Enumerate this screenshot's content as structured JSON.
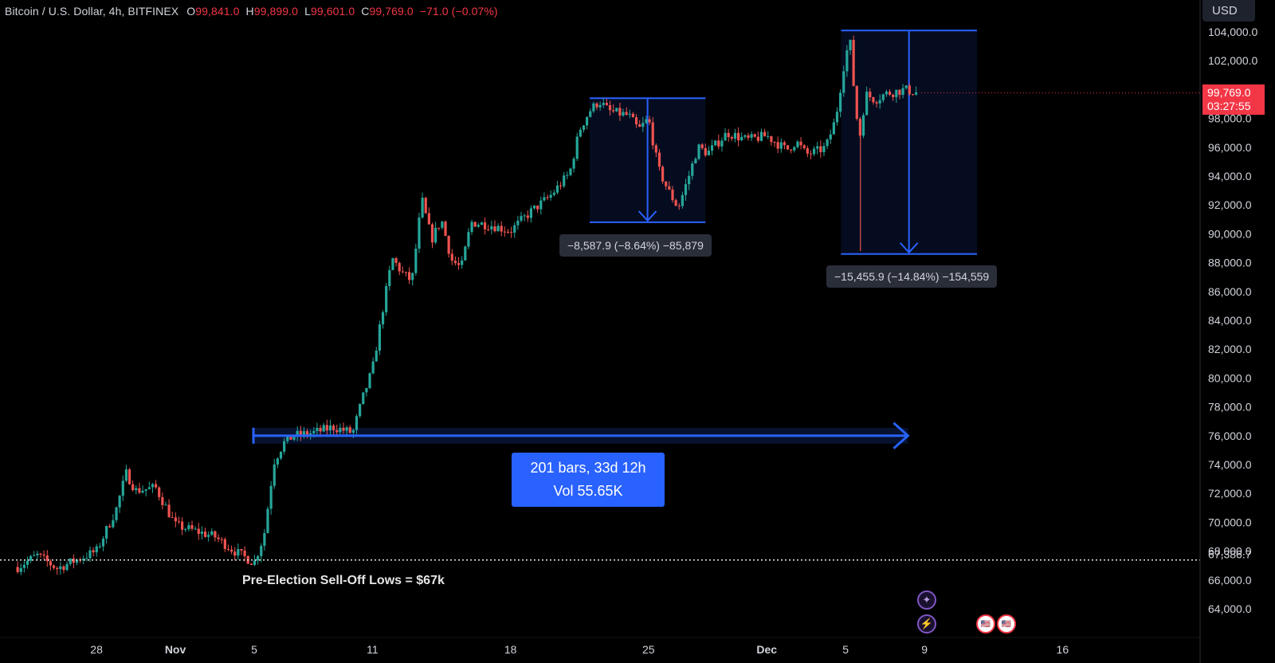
{
  "legend": {
    "symbol": "Bitcoin / U.S. Dollar, 4h, BITFINEX",
    "o_label": "O",
    "o": "99,841.0",
    "h_label": "H",
    "h": "99,899.0",
    "l_label": "L",
    "l": "99,601.0",
    "c_label": "C",
    "c": "99,769.0",
    "change": "−71.0 (−0.07%)"
  },
  "currency": "USD",
  "last_price": {
    "price": "99,769.0",
    "countdown": "03:27:55"
  },
  "colors": {
    "up": "#26a69a",
    "down": "#ef5350",
    "tool": "#2962ff",
    "last": "#f23645",
    "bg": "#000000"
  },
  "measure_1": {
    "label": "−8,587.9 (−8.64%) −85,879"
  },
  "measure_2": {
    "label": "−15,455.9 (−14.84%) −154,559"
  },
  "range": {
    "line1": "201 bars, 33d 12h",
    "line2": "Vol 55.65K"
  },
  "annotation": {
    "text": "Pre-Election Sell-Off Lows = $67k",
    "level_label": "67,386.7"
  },
  "events": [
    {
      "icon": "sparkle-icon",
      "glyph": "✦"
    },
    {
      "icon": "lightning-icon",
      "glyph": "⚡"
    },
    {
      "icon": "us-flag-icon",
      "glyph": "🇺🇸"
    },
    {
      "icon": "us-flag-icon",
      "glyph": "🇺🇸"
    }
  ],
  "chart_data": {
    "type": "candlestick",
    "title": "Bitcoin / U.S. Dollar, 4h, BITFINEX",
    "timeframe": "4h",
    "ylim": [
      62000,
      105500
    ],
    "y_ticks": [
      "104,000.0",
      "102,000.0",
      "98,000.0",
      "96,000.0",
      "94,000.0",
      "92,000.0",
      "90,000.0",
      "88,000.0",
      "86,000.0",
      "84,000.0",
      "82,000.0",
      "80,000.0",
      "78,000.0",
      "76,000.0",
      "74,000.0",
      "72,000.0",
      "70,000.0",
      "68,000.0",
      "66,000.0",
      "64,000.0"
    ],
    "x_ticks": [
      "28",
      "Nov",
      "5",
      "11",
      "18",
      "25",
      "Dec",
      "5",
      "9",
      "16"
    ],
    "x_tick_dates": [
      "2024-10-28",
      "2024-11-01",
      "2024-11-05",
      "2024-11-11",
      "2024-11-18",
      "2024-11-25",
      "2024-12-01",
      "2024-12-05",
      "2024-12-09",
      "2024-12-16"
    ],
    "series_path": [
      [
        "2024-10-24 00:00",
        66900
      ],
      [
        "2024-10-25 00:00",
        67700
      ],
      [
        "2024-10-26 00:00",
        66800
      ],
      [
        "2024-10-27 00:00",
        67400
      ],
      [
        "2024-10-28 00:00",
        68000
      ],
      [
        "2024-10-29 00:00",
        70900
      ],
      [
        "2024-10-29 12:00",
        73400
      ],
      [
        "2024-10-30 00:00",
        72200
      ],
      [
        "2024-10-31 00:00",
        72400
      ],
      [
        "2024-11-01 00:00",
        69800
      ],
      [
        "2024-11-02 00:00",
        69400
      ],
      [
        "2024-11-03 00:00",
        69000
      ],
      [
        "2024-11-04 00:00",
        68000
      ],
      [
        "2024-11-05 00:00",
        67200
      ],
      [
        "2024-11-05 12:00",
        69100
      ],
      [
        "2024-11-06 00:00",
        74200
      ],
      [
        "2024-11-06 12:00",
        75500
      ],
      [
        "2024-11-07 00:00",
        76000
      ],
      [
        "2024-11-08 00:00",
        76200
      ],
      [
        "2024-11-09 00:00",
        76600
      ],
      [
        "2024-11-10 00:00",
        76200
      ],
      [
        "2024-11-10 12:00",
        78600
      ],
      [
        "2024-11-11 00:00",
        80600
      ],
      [
        "2024-11-11 12:00",
        84600
      ],
      [
        "2024-11-12 00:00",
        88300
      ],
      [
        "2024-11-12 12:00",
        87300
      ],
      [
        "2024-11-13 00:00",
        86700
      ],
      [
        "2024-11-13 12:00",
        92400
      ],
      [
        "2024-11-14 00:00",
        89600
      ],
      [
        "2024-11-14 12:00",
        91000
      ],
      [
        "2024-11-15 00:00",
        88200
      ],
      [
        "2024-11-15 12:00",
        87600
      ],
      [
        "2024-11-16 00:00",
        90800
      ],
      [
        "2024-11-17 00:00",
        90600
      ],
      [
        "2024-11-18 00:00",
        90200
      ],
      [
        "2024-11-19 00:00",
        91500
      ],
      [
        "2024-11-20 00:00",
        92600
      ],
      [
        "2024-11-21 00:00",
        94200
      ],
      [
        "2024-11-21 12:00",
        97200
      ],
      [
        "2024-11-22 00:00",
        98500
      ],
      [
        "2024-11-22 12:00",
        99200
      ],
      [
        "2024-11-23 00:00",
        98500
      ],
      [
        "2024-11-24 00:00",
        98200
      ],
      [
        "2024-11-24 12:00",
        97200
      ],
      [
        "2024-11-25 00:00",
        98000
      ],
      [
        "2024-11-25 12:00",
        94500
      ],
      [
        "2024-11-26 00:00",
        93000
      ],
      [
        "2024-11-26 12:00",
        91800
      ],
      [
        "2024-11-27 00:00",
        93800
      ],
      [
        "2024-11-27 12:00",
        96000
      ],
      [
        "2024-11-28 00:00",
        95600
      ],
      [
        "2024-11-29 00:00",
        97000
      ],
      [
        "2024-11-30 00:00",
        96500
      ],
      [
        "2024-12-01 00:00",
        96800
      ],
      [
        "2024-12-02 00:00",
        95800
      ],
      [
        "2024-12-02 12:00",
        96400
      ],
      [
        "2024-12-03 00:00",
        95500
      ],
      [
        "2024-12-03 12:00",
        95700
      ],
      [
        "2024-12-04 00:00",
        96000
      ],
      [
        "2024-12-04 12:00",
        98000
      ],
      [
        "2024-12-05 00:00",
        102500
      ],
      [
        "2024-12-05 06:00",
        103200
      ],
      [
        "2024-12-05 12:00",
        98500
      ],
      [
        "2024-12-05 18:00",
        96800
      ],
      [
        "2024-12-06 00:00",
        99700
      ],
      [
        "2024-12-06 12:00",
        99300
      ],
      [
        "2024-12-07 00:00",
        99700
      ],
      [
        "2024-12-08 00:00",
        100000
      ],
      [
        "2024-12-08 16:00",
        99769
      ]
    ],
    "measurements": [
      {
        "from": [
          "2024-11-22 12:00",
          99400
        ],
        "to": [
          "2024-11-27 00:00",
          90800
        ],
        "change": "−8,587.9 (−8.64%) −85,879"
      },
      {
        "from": [
          "2024-12-05 06:00",
          104100
        ],
        "to": [
          "2024-12-08 18:00",
          88600
        ],
        "change": "−15,455.9 (−14.84%) −154,559"
      }
    ],
    "date_range": {
      "from": "2024-11-05",
      "to": "2024-12-08",
      "level": 76000,
      "bars": 201,
      "duration": "33d 12h",
      "volume": "55.65K"
    },
    "horizontal_line": {
      "level": 67386.7
    },
    "last_close": 99769.0
  }
}
